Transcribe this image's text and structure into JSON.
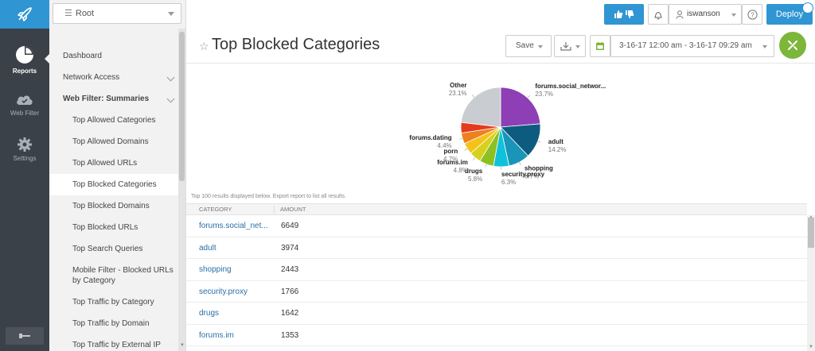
{
  "rail": {
    "items": [
      {
        "label": "Reports",
        "icon": "pie-chart-icon"
      },
      {
        "label": "Web Filter",
        "icon": "cloud-icon"
      },
      {
        "label": "Settings",
        "icon": "gear-icon"
      }
    ]
  },
  "nav": {
    "root_select": "Root",
    "items": [
      {
        "label": "Dashboard"
      },
      {
        "label": "Network Access"
      },
      {
        "label": "Web Filter: Summaries"
      },
      {
        "label": "Top Allowed Categories"
      },
      {
        "label": "Top Allowed Domains"
      },
      {
        "label": "Top Allowed URLs"
      },
      {
        "label": "Top Blocked Categories"
      },
      {
        "label": "Top Blocked Domains"
      },
      {
        "label": "Top Blocked URLs"
      },
      {
        "label": "Top Search Queries"
      },
      {
        "label": "Mobile Filter - Blocked URLs by Category"
      },
      {
        "label": "Top Traffic by Category"
      },
      {
        "label": "Top Traffic by Domain"
      },
      {
        "label": "Top Traffic by External IP"
      }
    ]
  },
  "topbar": {
    "user": "iswanson",
    "deploy_label": "Deploy",
    "colors": {
      "accent": "#2f95d3",
      "rail": "#3b4148",
      "green": "#7cb63a"
    }
  },
  "header": {
    "title": "Top Blocked Categories",
    "save_label": "Save",
    "date_range": "3-16-17 12:00 am - 3-16-17 09:29 am"
  },
  "chart_data": {
    "type": "pie",
    "slices": [
      {
        "label": "forums.social_networ...",
        "value": 23.7,
        "color": "#8e3fb5"
      },
      {
        "label": "adult",
        "value": 14.2,
        "color": "#0d5c80"
      },
      {
        "label": "shopping",
        "value": 8.7,
        "color": "#1895b8"
      },
      {
        "label": "security.proxy",
        "value": 6.3,
        "color": "#10c2d9"
      },
      {
        "label": "drugs",
        "value": 5.8,
        "color": "#8dc021"
      },
      {
        "label": "forums.im",
        "value": 4.8,
        "color": "#d7d01c"
      },
      {
        "label": "porn",
        "value": 4.7,
        "color": "#f5c21a"
      },
      {
        "label": "forums.dating",
        "value": 4.4,
        "color": "#f07f1e"
      },
      {
        "label": "Other",
        "value": 23.1,
        "color": "#c9ccd0"
      }
    ],
    "extra_slice_colors": [
      "#e33b1e"
    ]
  },
  "results_note": "Top 100 results displayed below. Export report to list all results.",
  "table": {
    "columns": [
      "CATEGORY",
      "AMOUNT"
    ],
    "rows": [
      {
        "category": "forums.social_net...",
        "amount": "6649"
      },
      {
        "category": "adult",
        "amount": "3974"
      },
      {
        "category": "shopping",
        "amount": "2443"
      },
      {
        "category": "security.proxy",
        "amount": "1766"
      },
      {
        "category": "drugs",
        "amount": "1642"
      },
      {
        "category": "forums.im",
        "amount": "1353"
      }
    ]
  }
}
